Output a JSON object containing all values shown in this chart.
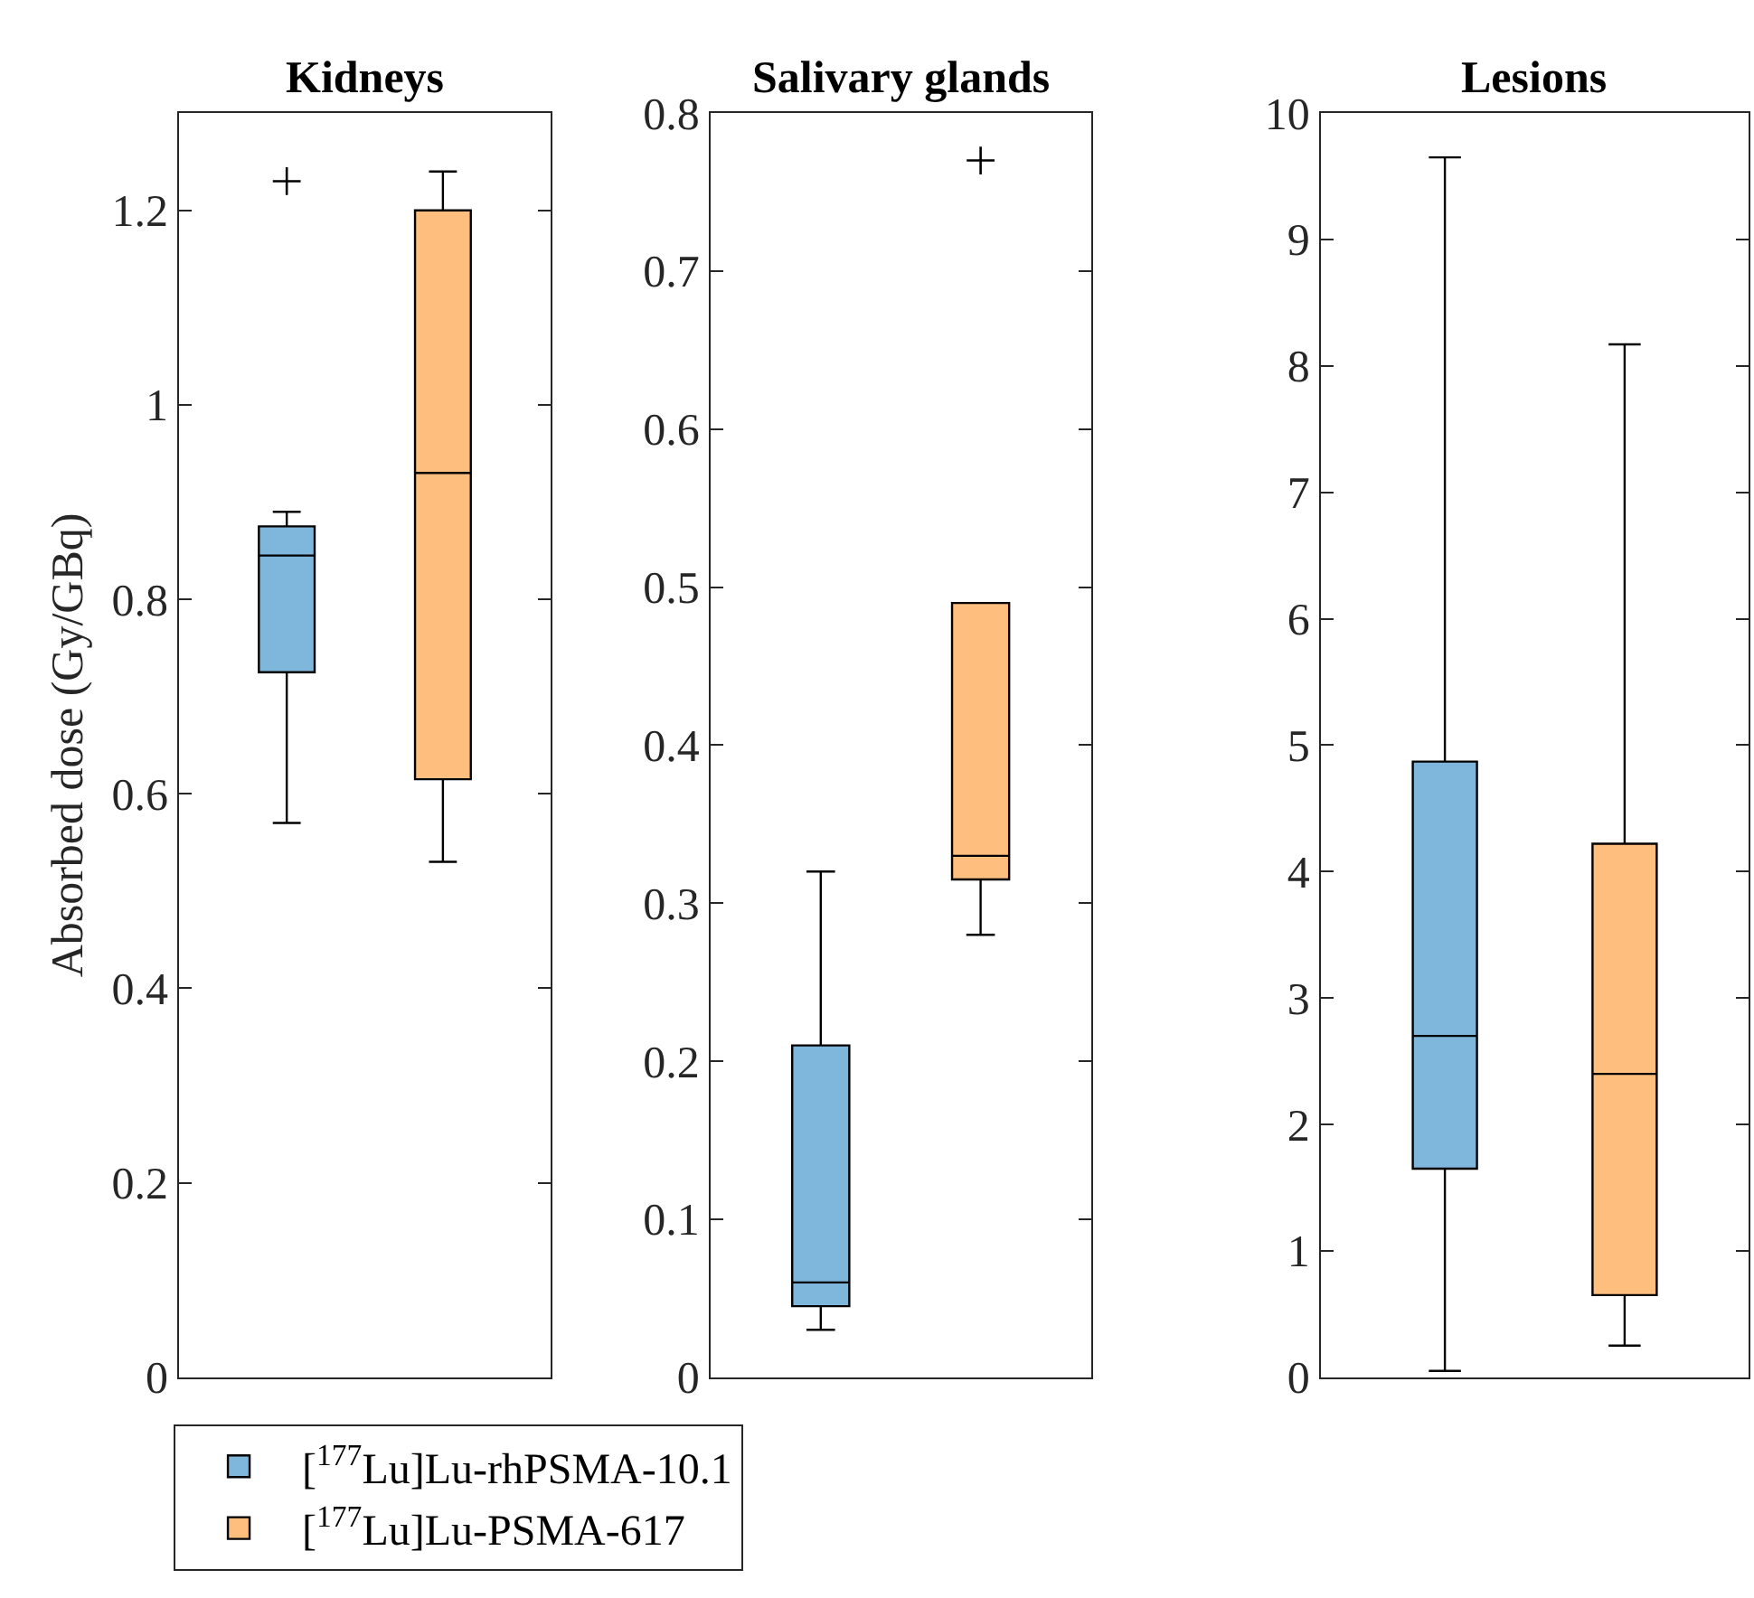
{
  "chart_data": [
    {
      "type": "box",
      "title": "Kidneys",
      "ylabel": "Absorbed dose (Gy/GBq)",
      "categories": [
        null
      ],
      "ylim": [
        0,
        1.3
      ],
      "yticks": [
        0,
        0.2,
        0.4,
        0.6,
        0.8,
        1,
        1.2
      ],
      "legend": "bottom",
      "tick_labels": "y",
      "series": [
        {
          "name": "[$^{177}$Lu]Lu-rhPSMA-10.1",
          "color": "#7eb6dc",
          "boxes": [
            {
              "low": 0.57,
              "q1": 0.725,
              "median": 0.845,
              "q3": 0.875,
              "high": 0.89,
              "outliers": [
                1.23
              ]
            }
          ]
        },
        {
          "name": "[$^{177}$Lu]Lu-PSMA-617",
          "color": "#febe7e",
          "boxes": [
            {
              "low": 0.53,
              "q1": 0.615,
              "median": 0.93,
              "q3": 1.2,
              "high": 1.24
            }
          ]
        }
      ]
    },
    {
      "type": "box",
      "title": "Salivary glands",
      "categories": [
        null
      ],
      "ylim": [
        0,
        0.8
      ],
      "yticks": [
        0,
        0.1,
        0.2,
        0.3,
        0.4,
        0.5,
        0.6,
        0.7,
        0.8
      ],
      "tick_labels": "y",
      "series": [
        {
          "color": "#7eb6dc",
          "boxes": [
            {
              "low": 0.03,
              "q1": 0.045,
              "median": 0.06,
              "q3": 0.21,
              "high": 0.32
            }
          ]
        },
        {
          "color": "#febe7e",
          "boxes": [
            {
              "low": 0.28,
              "q1": 0.315,
              "median": 0.33,
              "q3": 0.49,
              "high": 0.49,
              "outliers": [
                0.77
              ]
            }
          ]
        }
      ]
    },
    {
      "type": "box",
      "title": "Lesions",
      "categories": [
        null
      ],
      "ylim": [
        0,
        10
      ],
      "yticks": [
        0,
        1,
        2,
        3,
        4,
        5,
        6,
        7,
        8,
        9,
        10
      ],
      "tick_labels": "y",
      "series": [
        {
          "color": "#7eb6dc",
          "boxes": [
            {
              "low": 0.05,
              "q1": 1.65,
              "median": 2.7,
              "q3": 4.87,
              "high": 9.65
            }
          ]
        },
        {
          "color": "#febe7e",
          "boxes": [
            {
              "low": 0.25,
              "q1": 0.65,
              "median": 2.4,
              "q3": 4.22,
              "high": 8.17
            }
          ]
        }
      ]
    }
  ]
}
